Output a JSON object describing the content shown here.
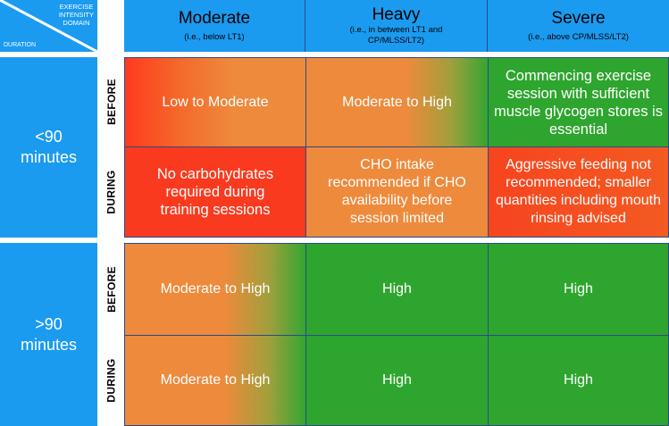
{
  "corner": {
    "domain_label": "EXERCISE\nINTENSITY\nDOMAIN",
    "duration_label": "DURATION"
  },
  "columns": [
    {
      "title": "Moderate",
      "subtitle": "(i.e., below LT1)"
    },
    {
      "title": "Heavy",
      "subtitle": "(i.e., in between LT1 and CP/MLSS/LT2)"
    },
    {
      "title": "Severe",
      "subtitle": "(i.e., above CP/MLSS/LT2)"
    }
  ],
  "groups": [
    {
      "duration": "<90 minutes",
      "rows": [
        {
          "label": "BEFORE",
          "cells": [
            "Low to Moderate",
            "Moderate to High",
            "Commencing exercise session with sufficient muscle glycogen stores is essential"
          ]
        },
        {
          "label": "DURING",
          "cells": [
            "No carbohydrates required during training sessions",
            "CHO intake recommended if CHO availability before session limited",
            "Aggressive feeding not recommended; smaller quantities including mouth rinsing advised"
          ]
        }
      ]
    },
    {
      "duration": ">90 minutes",
      "rows": [
        {
          "label": "BEFORE",
          "cells": [
            "Moderate to High",
            "High",
            "High"
          ]
        },
        {
          "label": "DURING",
          "cells": [
            "Moderate to High",
            "High",
            "High"
          ]
        }
      ]
    }
  ],
  "colors": {
    "header_blue": "#1a9bf0",
    "green": "#2ea52e",
    "orange": "#ee8a3c",
    "red": "#f93a1e"
  }
}
